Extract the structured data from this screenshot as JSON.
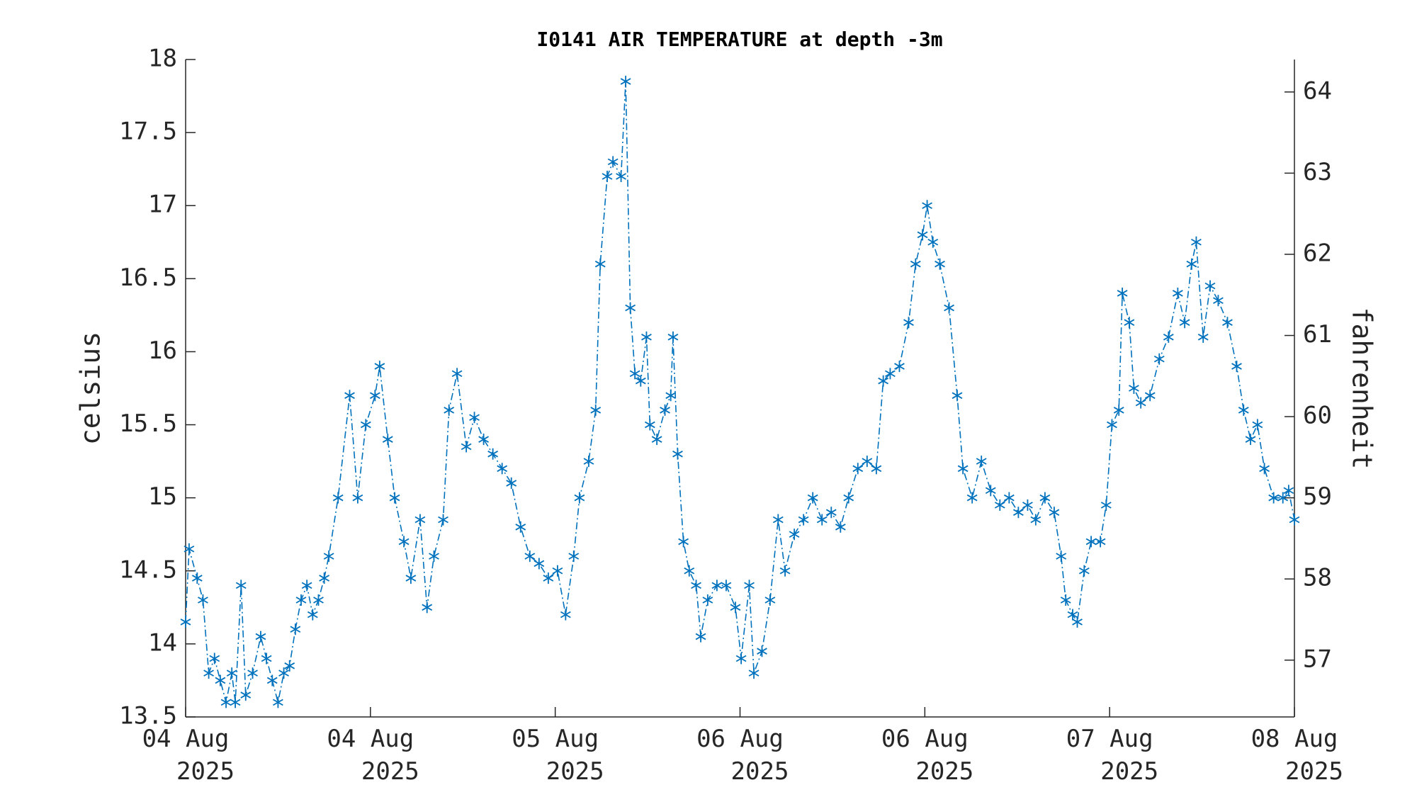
{
  "chart_data": {
    "type": "line",
    "title": "I0141 AIR TEMPERATURE at depth -3m",
    "ylabel": "celsius",
    "y2label": "fahrenheit",
    "color": "#0072bd",
    "x": [
      0,
      0.3,
      1,
      1.5,
      2,
      2.5,
      3,
      3.5,
      4,
      4.3,
      4.8,
      5.2,
      5.8,
      6.5,
      7,
      7.5,
      8,
      8.5,
      9,
      9.5,
      10,
      10.5,
      11,
      11.5,
      12,
      12.4,
      13.2,
      14.2,
      14.9,
      15.6,
      16.4,
      16.8,
      17.5,
      18.1,
      18.9,
      19.5,
      20.3,
      20.9,
      21.5,
      22.3,
      22.8,
      23.5,
      24.3,
      25.0,
      25.8,
      26.6,
      27.4,
      28.2,
      29.0,
      29.8,
      30.6,
      31.4,
      32.2,
      32.9,
      33.6,
      34.1,
      34.9,
      35.5,
      35.9,
      36.5,
      37.0,
      37.7,
      38.1,
      38.5,
      38.9,
      39.4,
      39.9,
      40.2,
      40.8,
      41.5,
      42.0,
      42.2,
      42.6,
      43.1,
      43.6,
      44.2,
      44.6,
      45.2,
      46.0,
      46.8,
      47.6,
      48.1,
      48.8,
      49.2,
      49.9,
      50.6,
      51.3,
      51.9,
      52.7,
      53.5,
      54.3,
      55.1,
      55.9,
      56.7,
      57.4,
      58.2,
      59.0,
      59.8,
      60.4,
      61.0,
      61.8,
      62.6,
      63.2,
      63.8,
      64.2,
      64.7,
      65.3,
      66.1,
      66.8,
      67.3,
      68.1,
      68.9,
      69.7,
      70.5,
      71.3,
      72.1,
      72.9,
      73.6,
      74.4,
      75.2,
      75.8,
      76.2,
      76.8,
      77.2,
      77.8,
      78.4,
      79.2,
      79.7,
      80.2,
      80.8,
      81.1,
      81.7,
      82.1,
      82.7,
      83.5,
      84.3,
      85.1,
      85.9,
      86.5,
      87.1,
      87.5,
      88.1,
      88.7,
      89.4,
      90.2,
      91.0,
      91.6,
      92.2,
      92.8,
      93.4,
      94.2,
      95.0,
      95.5,
      96.0
    ],
    "values": [
      14.15,
      14.65,
      14.45,
      14.3,
      13.8,
      13.9,
      13.75,
      13.6,
      13.8,
      13.6,
      14.4,
      13.65,
      13.8,
      14.05,
      13.9,
      13.75,
      13.6,
      13.8,
      13.85,
      14.1,
      14.3,
      14.4,
      14.2,
      14.3,
      14.45,
      14.6,
      15.0,
      15.7,
      15.0,
      15.5,
      15.7,
      15.9,
      15.4,
      15.0,
      14.7,
      14.45,
      14.85,
      14.25,
      14.6,
      14.85,
      15.6,
      15.85,
      15.35,
      15.55,
      15.4,
      15.3,
      15.2,
      15.1,
      14.8,
      14.6,
      14.55,
      14.45,
      14.5,
      14.2,
      14.6,
      15.0,
      15.25,
      15.6,
      16.6,
      17.2,
      17.3,
      17.2,
      17.85,
      16.3,
      15.85,
      15.8,
      16.1,
      15.5,
      15.4,
      15.6,
      15.7,
      16.1,
      15.3,
      14.7,
      14.5,
      14.4,
      14.05,
      14.3,
      14.4,
      14.4,
      14.25,
      13.9,
      14.4,
      13.8,
      13.95,
      14.3,
      14.85,
      14.5,
      14.75,
      14.85,
      15.0,
      14.85,
      14.9,
      14.8,
      15.0,
      15.2,
      15.25,
      15.2,
      15.8,
      15.85,
      15.9,
      16.2,
      16.6,
      16.8,
      17.0,
      16.75,
      16.6,
      16.3,
      15.7,
      15.2,
      15.0,
      15.25,
      15.05,
      14.95,
      15.0,
      14.9,
      14.95,
      14.85,
      15.0,
      14.9,
      14.6,
      14.3,
      14.2,
      14.15,
      14.5,
      14.7,
      14.7,
      14.95,
      15.5,
      15.6,
      16.4,
      16.2,
      15.75,
      15.65,
      15.7,
      15.95,
      16.1,
      16.4,
      16.2,
      16.6,
      16.75,
      16.1,
      16.45,
      16.35,
      16.2,
      15.9,
      15.6,
      15.4,
      15.5,
      15.2,
      15.0,
      15.0,
      15.05,
      14.85
    ],
    "xlim": [
      0,
      96
    ],
    "xticks": [
      {
        "value": 0,
        "label": "04 Aug 2025"
      },
      {
        "value": 16,
        "label": "04 Aug 2025"
      },
      {
        "value": 32,
        "label": "05 Aug 2025"
      },
      {
        "value": 48,
        "label": "06 Aug 2025"
      },
      {
        "value": 64,
        "label": "06 Aug 2025"
      },
      {
        "value": 80,
        "label": "07 Aug 2025"
      },
      {
        "value": 96,
        "label": "08 Aug 2025"
      }
    ],
    "ylim": [
      13.5,
      18
    ],
    "yticks": [
      13.5,
      14,
      14.5,
      15,
      15.5,
      16,
      16.5,
      17,
      17.5,
      18
    ],
    "y2lim": [
      56.3,
      64.4
    ],
    "y2ticks": [
      57,
      58,
      59,
      60,
      61,
      62,
      63,
      64
    ]
  }
}
